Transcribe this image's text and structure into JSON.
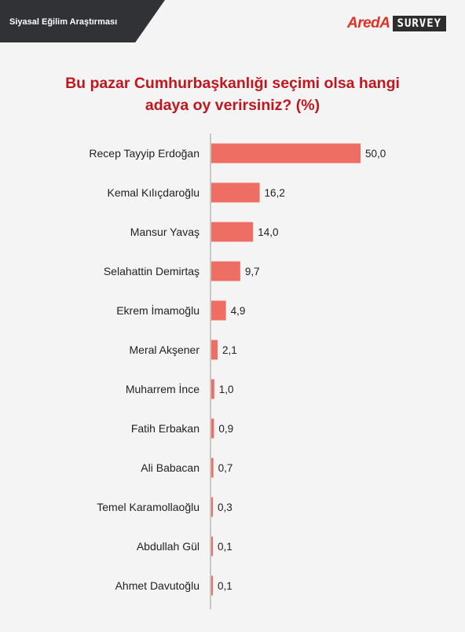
{
  "header": {
    "title": "Siyasal Eğilim Araştırması",
    "logo_brand": "AredA",
    "logo_suffix": "SURVEY"
  },
  "colors": {
    "bar": "#ee6e64",
    "title": "#c0171f",
    "header_bg": "#303236",
    "logo_red": "#e03224"
  },
  "chart_data": {
    "type": "bar",
    "orientation": "horizontal",
    "title_line1": "Bu pazar Cumhurbaşkanlığı seçimi olsa hangi",
    "title_line2": "adaya oy verirsiniz? (%)",
    "categories": [
      "Recep Tayyip Erdoğan",
      "Kemal Kılıçdaroğlu",
      "Mansur Yavaş",
      "Selahattin Demirtaş",
      "Ekrem İmamoğlu",
      "Meral Akşener",
      "Muharrem İnce",
      "Fatih Erbakan",
      "Ali Babacan",
      "Temel Karamollaoğlu",
      "Abdullah Gül",
      "Ahmet Davutoğlu"
    ],
    "values": [
      50.0,
      16.2,
      14.0,
      9.7,
      4.9,
      2.1,
      1.0,
      0.9,
      0.7,
      0.3,
      0.1,
      0.1
    ],
    "labels": [
      "50,0",
      "16,2",
      "14,0",
      "9,7",
      "4,9",
      "2,1",
      "1,0",
      "0,9",
      "0,7",
      "0,3",
      "0,1",
      "0,1"
    ],
    "xlim": [
      0,
      50
    ],
    "grid": false,
    "legend": "none"
  }
}
